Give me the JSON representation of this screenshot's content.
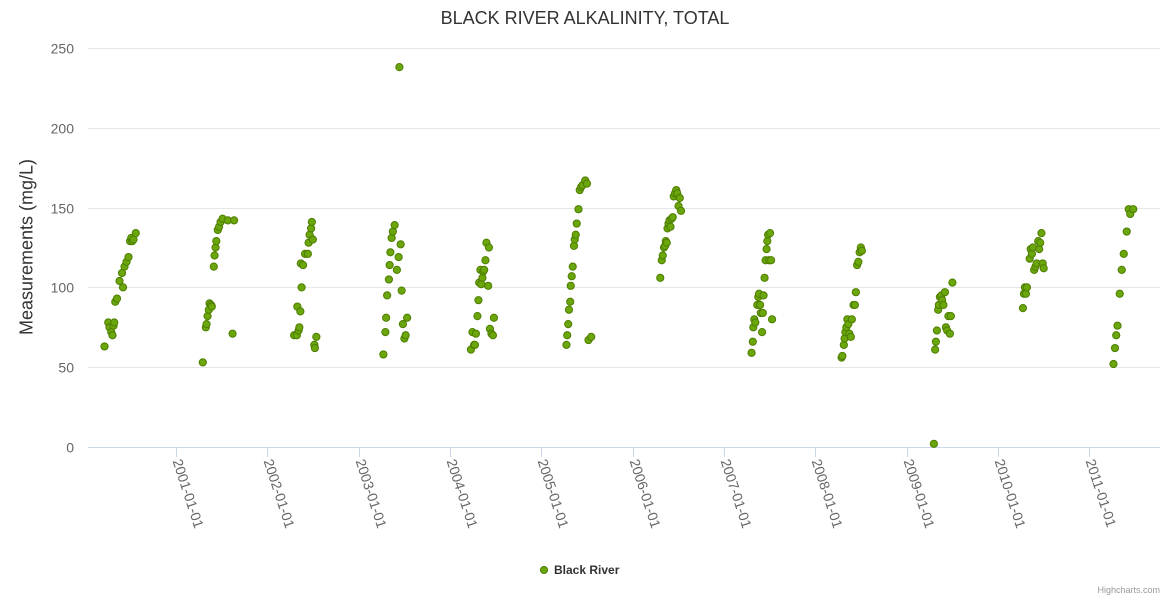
{
  "title": "BLACK RIVER ALKALINITY, TOTAL",
  "credits": "Highcharts.com",
  "colors": {
    "point_fill": "#6aa60c",
    "point_stroke": "#4d7d00",
    "grid": "#e6e6e6",
    "axis_line": "#ccd6eb",
    "text": "#666666"
  },
  "chart_data": {
    "type": "scatter",
    "title": "BLACK RIVER ALKALINITY, TOTAL",
    "ylabel": "Measurements (mg/L)",
    "xlabel": "",
    "ylim": [
      0,
      250
    ],
    "yticks": [
      0,
      50,
      100,
      150,
      200,
      250
    ],
    "xlim": [
      "2000-01-15",
      "2011-10-10"
    ],
    "xticks": [
      "2001-01-01",
      "2002-01-01",
      "2003-01-01",
      "2004-01-01",
      "2005-01-01",
      "2006-01-01",
      "2007-01-01",
      "2008-01-01",
      "2009-01-01",
      "2010-01-01",
      "2011-01-01"
    ],
    "grid": true,
    "legend_position": "bottom-center",
    "series": [
      {
        "name": "Black River",
        "points": [
          [
            "2000-03-21",
            63
          ],
          [
            "2000-04-05",
            78
          ],
          [
            "2000-04-10",
            75
          ],
          [
            "2000-04-17",
            72
          ],
          [
            "2000-04-22",
            70
          ],
          [
            "2000-04-26",
            76
          ],
          [
            "2000-04-29",
            78
          ],
          [
            "2000-05-03",
            91
          ],
          [
            "2000-05-10",
            93
          ],
          [
            "2000-05-20",
            104
          ],
          [
            "2000-05-30",
            109
          ],
          [
            "2000-06-03",
            100
          ],
          [
            "2000-06-09",
            113
          ],
          [
            "2000-06-17",
            116
          ],
          [
            "2000-06-25",
            119
          ],
          [
            "2000-07-01",
            129
          ],
          [
            "2000-07-06",
            131
          ],
          [
            "2000-07-10",
            129
          ],
          [
            "2000-07-15",
            130
          ],
          [
            "2000-07-24",
            134
          ],
          [
            "2001-04-18",
            53
          ],
          [
            "2001-04-30",
            75
          ],
          [
            "2001-05-03",
            77
          ],
          [
            "2001-05-07",
            82
          ],
          [
            "2001-05-12",
            86
          ],
          [
            "2001-05-15",
            90
          ],
          [
            "2001-05-21",
            89
          ],
          [
            "2001-05-24",
            88
          ],
          [
            "2001-06-01",
            113
          ],
          [
            "2001-06-04",
            120
          ],
          [
            "2001-06-08",
            125
          ],
          [
            "2001-06-11",
            129
          ],
          [
            "2001-06-17",
            136
          ],
          [
            "2001-06-22",
            138
          ],
          [
            "2001-06-28",
            141
          ],
          [
            "2001-07-06",
            143
          ],
          [
            "2001-07-27",
            142
          ],
          [
            "2001-08-15",
            71
          ],
          [
            "2001-08-21",
            142
          ],
          [
            "2002-04-18",
            70
          ],
          [
            "2002-04-29",
            70
          ],
          [
            "2002-05-01",
            88
          ],
          [
            "2002-05-06",
            73
          ],
          [
            "2002-05-09",
            75
          ],
          [
            "2002-05-13",
            85
          ],
          [
            "2002-05-15",
            115
          ],
          [
            "2002-05-18",
            100
          ],
          [
            "2002-05-24",
            114
          ],
          [
            "2002-06-01",
            121
          ],
          [
            "2002-06-12",
            121
          ],
          [
            "2002-06-15",
            128
          ],
          [
            "2002-06-19",
            133
          ],
          [
            "2002-06-25",
            137
          ],
          [
            "2002-06-28",
            141
          ],
          [
            "2002-07-02",
            130
          ],
          [
            "2002-07-08",
            64
          ],
          [
            "2002-07-10",
            62
          ],
          [
            "2002-07-16",
            69
          ],
          [
            "2003-04-10",
            58
          ],
          [
            "2003-04-18",
            72
          ],
          [
            "2003-04-21",
            81
          ],
          [
            "2003-04-25",
            95
          ],
          [
            "2003-05-02",
            105
          ],
          [
            "2003-05-05",
            114
          ],
          [
            "2003-05-08",
            122
          ],
          [
            "2003-05-13",
            131
          ],
          [
            "2003-05-18",
            135
          ],
          [
            "2003-05-25",
            139
          ],
          [
            "2003-06-03",
            111
          ],
          [
            "2003-06-10",
            119
          ],
          [
            "2003-06-13",
            238
          ],
          [
            "2003-06-18",
            127
          ],
          [
            "2003-06-22",
            98
          ],
          [
            "2003-06-27",
            77
          ],
          [
            "2003-07-03",
            68
          ],
          [
            "2003-07-08",
            70
          ],
          [
            "2003-07-14",
            81
          ],
          [
            "2004-03-25",
            61
          ],
          [
            "2004-03-31",
            72
          ],
          [
            "2004-04-07",
            64
          ],
          [
            "2004-04-10",
            64
          ],
          [
            "2004-04-14",
            71
          ],
          [
            "2004-04-20",
            82
          ],
          [
            "2004-04-24",
            92
          ],
          [
            "2004-04-27",
            103
          ],
          [
            "2004-05-02",
            111
          ],
          [
            "2004-05-05",
            102
          ],
          [
            "2004-05-10",
            106
          ],
          [
            "2004-05-13",
            110
          ],
          [
            "2004-05-17",
            111
          ],
          [
            "2004-05-22",
            117
          ],
          [
            "2004-05-26",
            128
          ],
          [
            "2004-06-02",
            101
          ],
          [
            "2004-06-05",
            125
          ],
          [
            "2004-06-09",
            74
          ],
          [
            "2004-06-15",
            71
          ],
          [
            "2004-06-21",
            70
          ],
          [
            "2004-06-25",
            81
          ],
          [
            "2005-04-11",
            64
          ],
          [
            "2005-04-14",
            70
          ],
          [
            "2005-04-18",
            77
          ],
          [
            "2005-04-21",
            86
          ],
          [
            "2005-04-26",
            91
          ],
          [
            "2005-04-28",
            101
          ],
          [
            "2005-05-02",
            107
          ],
          [
            "2005-05-06",
            113
          ],
          [
            "2005-05-11",
            126
          ],
          [
            "2005-05-14",
            130
          ],
          [
            "2005-05-18",
            133
          ],
          [
            "2005-05-22",
            140
          ],
          [
            "2005-05-29",
            149
          ],
          [
            "2005-06-03",
            161
          ],
          [
            "2005-06-09",
            163
          ],
          [
            "2005-06-14",
            164
          ],
          [
            "2005-06-25",
            167
          ],
          [
            "2005-07-02",
            165
          ],
          [
            "2005-07-08",
            67
          ],
          [
            "2005-07-19",
            69
          ],
          [
            "2006-04-21",
            106
          ],
          [
            "2006-04-27",
            117
          ],
          [
            "2006-05-01",
            120
          ],
          [
            "2006-05-06",
            125
          ],
          [
            "2006-05-10",
            126
          ],
          [
            "2006-05-13",
            129
          ],
          [
            "2006-05-17",
            128
          ],
          [
            "2006-05-20",
            137
          ],
          [
            "2006-05-24",
            140
          ],
          [
            "2006-05-28",
            142
          ],
          [
            "2006-06-01",
            138
          ],
          [
            "2006-06-05",
            143
          ],
          [
            "2006-06-10",
            144
          ],
          [
            "2006-06-14",
            157
          ],
          [
            "2006-06-19",
            159
          ],
          [
            "2006-06-24",
            161
          ],
          [
            "2006-06-28",
            159
          ],
          [
            "2006-07-03",
            151
          ],
          [
            "2006-07-08",
            156
          ],
          [
            "2006-07-13",
            148
          ],
          [
            "2007-04-21",
            59
          ],
          [
            "2007-04-26",
            66
          ],
          [
            "2007-04-28",
            75
          ],
          [
            "2007-05-02",
            80
          ],
          [
            "2007-05-06",
            78
          ],
          [
            "2007-05-14",
            89
          ],
          [
            "2007-05-18",
            94
          ],
          [
            "2007-05-21",
            96
          ],
          [
            "2007-05-25",
            89
          ],
          [
            "2007-05-28",
            84
          ],
          [
            "2007-06-02",
            72
          ],
          [
            "2007-06-05",
            84
          ],
          [
            "2007-06-08",
            95
          ],
          [
            "2007-06-12",
            106
          ],
          [
            "2007-06-16",
            117
          ],
          [
            "2007-06-20",
            124
          ],
          [
            "2007-06-23",
            129
          ],
          [
            "2007-06-26",
            133
          ],
          [
            "2007-06-30",
            117
          ],
          [
            "2007-07-04",
            134
          ],
          [
            "2007-07-08",
            117
          ],
          [
            "2007-07-12",
            80
          ],
          [
            "2008-04-15",
            56
          ],
          [
            "2008-04-18",
            57
          ],
          [
            "2008-04-24",
            64
          ],
          [
            "2008-04-27",
            68
          ],
          [
            "2008-04-30",
            72
          ],
          [
            "2008-05-04",
            75
          ],
          [
            "2008-05-08",
            80
          ],
          [
            "2008-05-12",
            77
          ],
          [
            "2008-05-16",
            71
          ],
          [
            "2008-05-22",
            69
          ],
          [
            "2008-05-26",
            80
          ],
          [
            "2008-06-02",
            89
          ],
          [
            "2008-06-07",
            89
          ],
          [
            "2008-06-11",
            97
          ],
          [
            "2008-06-16",
            114
          ],
          [
            "2008-06-21",
            116
          ],
          [
            "2008-06-26",
            122
          ],
          [
            "2008-07-01",
            125
          ],
          [
            "2008-07-05",
            123
          ],
          [
            "2009-04-19",
            2
          ],
          [
            "2009-04-24",
            61
          ],
          [
            "2009-04-27",
            66
          ],
          [
            "2009-05-01",
            73
          ],
          [
            "2009-05-06",
            86
          ],
          [
            "2009-05-09",
            89
          ],
          [
            "2009-05-13",
            94
          ],
          [
            "2009-05-19",
            95
          ],
          [
            "2009-05-22",
            92
          ],
          [
            "2009-05-27",
            89
          ],
          [
            "2009-06-02",
            97
          ],
          [
            "2009-06-06",
            75
          ],
          [
            "2009-06-11",
            73
          ],
          [
            "2009-06-16",
            82
          ],
          [
            "2009-06-22",
            71
          ],
          [
            "2009-06-26",
            82
          ],
          [
            "2009-07-02",
            103
          ],
          [
            "2010-04-10",
            87
          ],
          [
            "2010-04-14",
            96
          ],
          [
            "2010-04-18",
            100
          ],
          [
            "2010-04-22",
            96
          ],
          [
            "2010-04-26",
            100
          ],
          [
            "2010-05-07",
            118
          ],
          [
            "2010-05-11",
            124
          ],
          [
            "2010-05-16",
            121
          ],
          [
            "2010-05-20",
            125
          ],
          [
            "2010-05-25",
            111
          ],
          [
            "2010-05-30",
            113
          ],
          [
            "2010-06-04",
            115
          ],
          [
            "2010-06-10",
            129
          ],
          [
            "2010-06-14",
            124
          ],
          [
            "2010-06-18",
            128
          ],
          [
            "2010-06-23",
            134
          ],
          [
            "2010-06-28",
            115
          ],
          [
            "2010-07-02",
            112
          ],
          [
            "2011-04-07",
            52
          ],
          [
            "2011-04-13",
            62
          ],
          [
            "2011-04-18",
            70
          ],
          [
            "2011-04-23",
            76
          ],
          [
            "2011-05-02",
            96
          ],
          [
            "2011-05-10",
            111
          ],
          [
            "2011-05-18",
            121
          ],
          [
            "2011-05-30",
            135
          ],
          [
            "2011-06-07",
            149
          ],
          [
            "2011-06-13",
            146
          ],
          [
            "2011-06-25",
            149
          ]
        ]
      }
    ]
  }
}
